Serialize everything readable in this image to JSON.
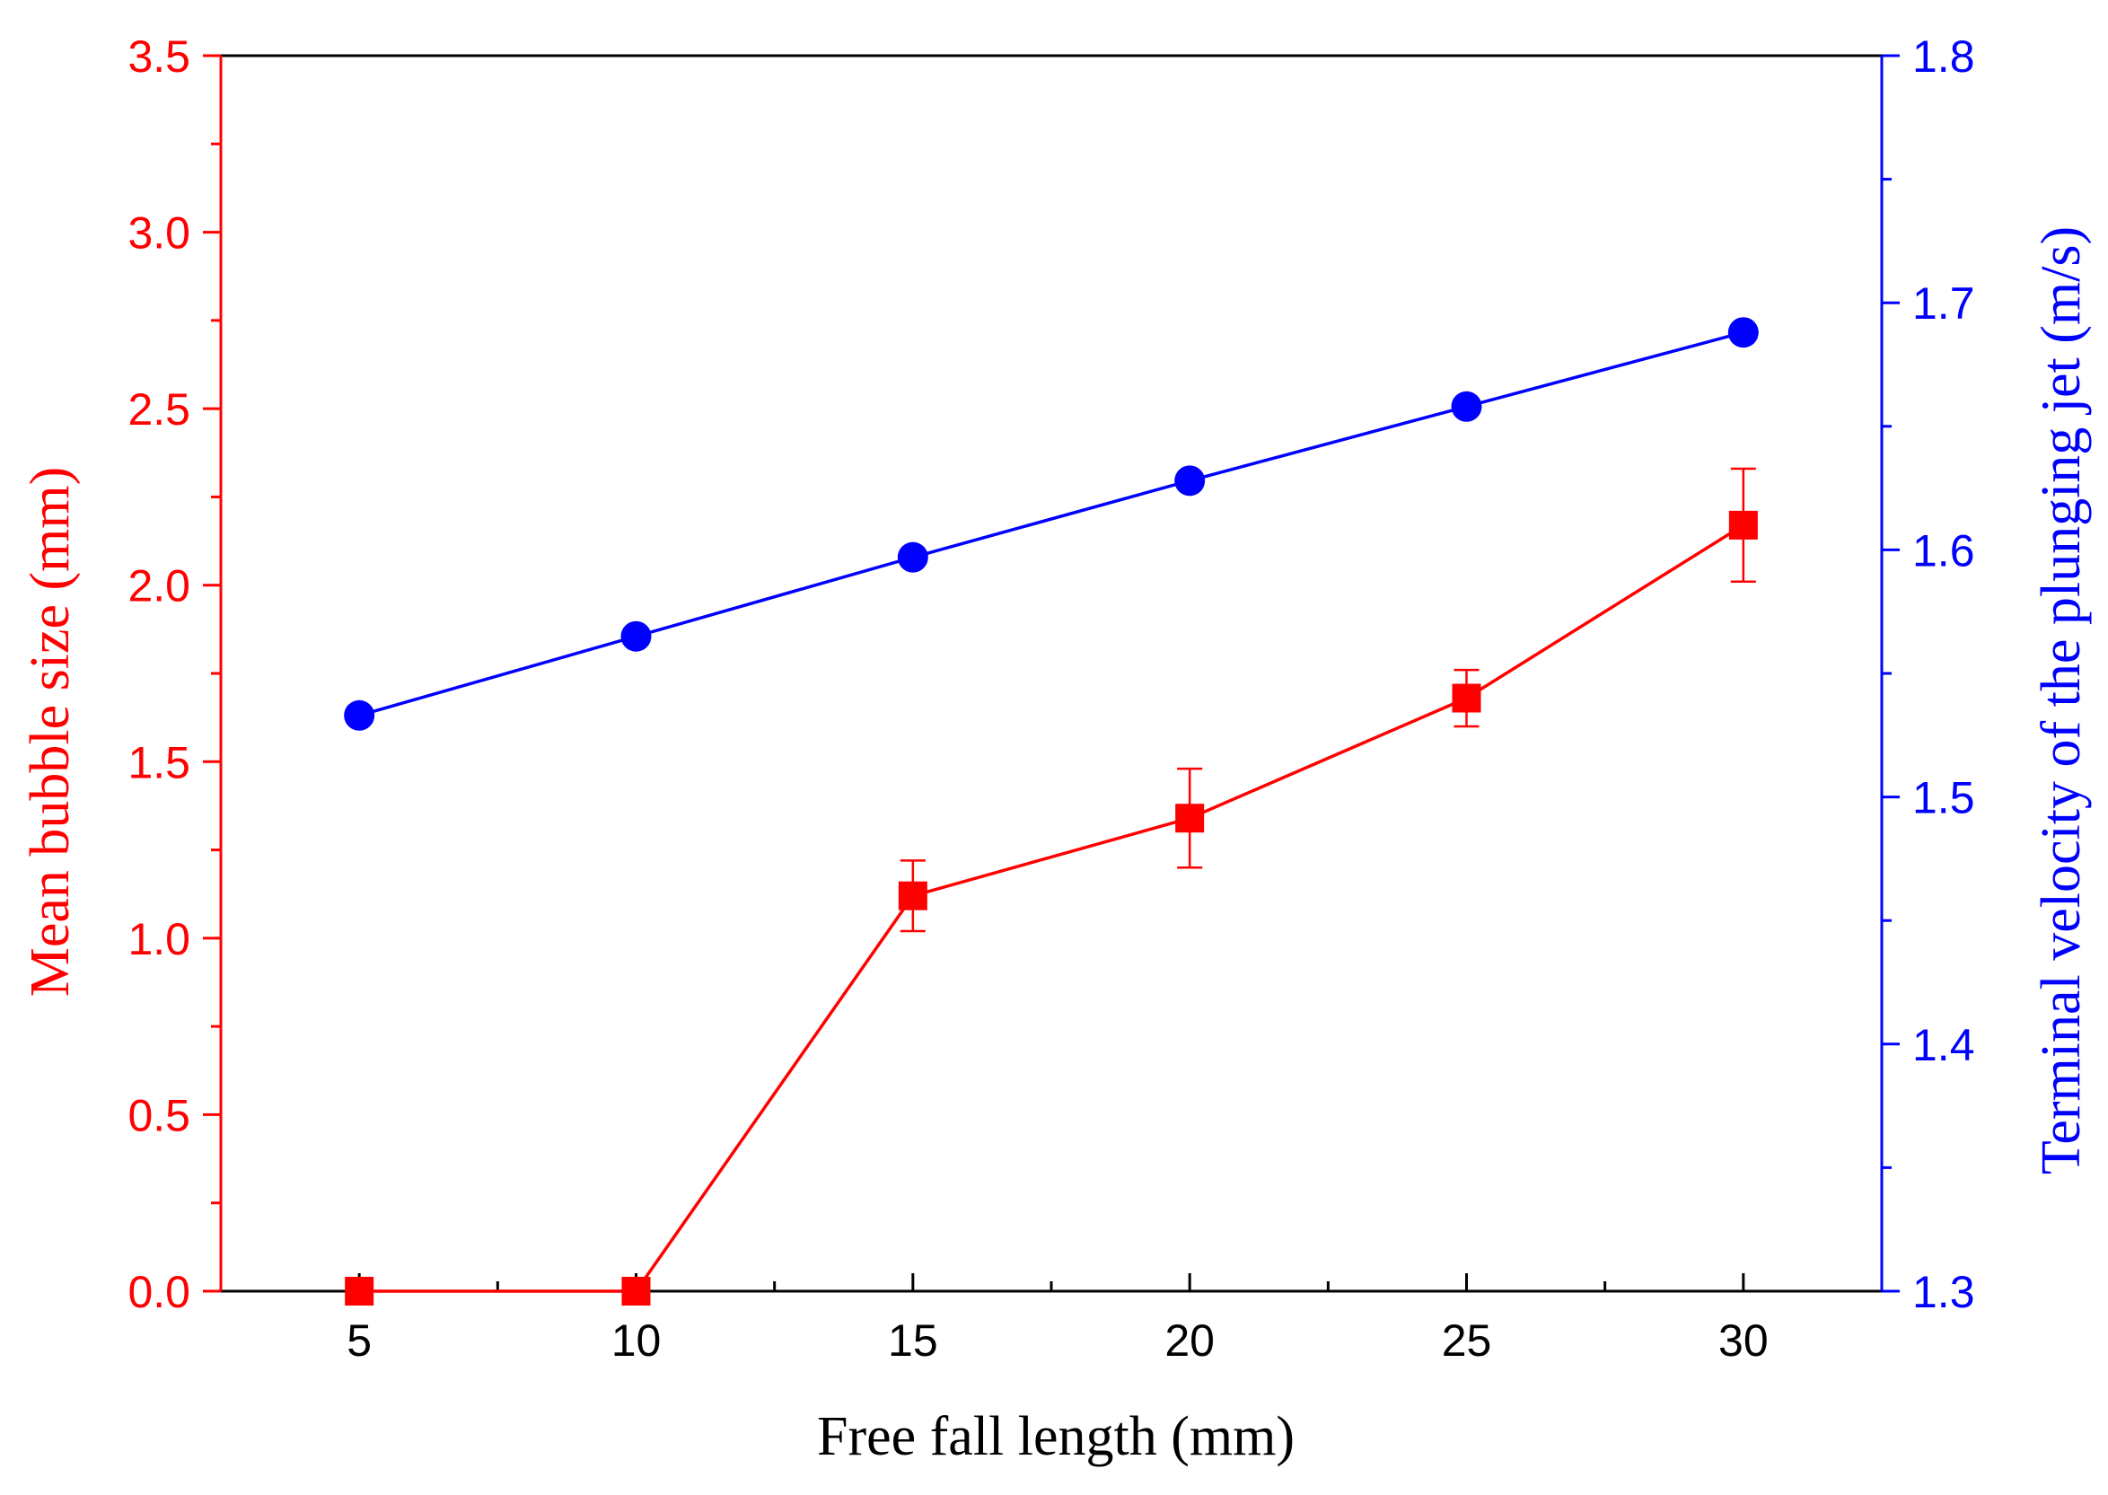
{
  "chart_data": {
    "type": "line",
    "title": "",
    "xlabel": "Free fall length (mm)",
    "ylabel_left": "Mean bubble size (mm)",
    "ylabel_right": "Terminal velocity of the plunging jet (m/s)",
    "x": [
      5,
      10,
      15,
      20,
      25,
      30
    ],
    "xlim": [
      2.5,
      32.5
    ],
    "xticks": [
      5,
      10,
      15,
      20,
      25,
      30
    ],
    "xtick_labels": [
      "5",
      "10",
      "15",
      "20",
      "25",
      "30"
    ],
    "ylim_left": [
      0,
      3.5
    ],
    "yticks_left": [
      0,
      0.5,
      1,
      1.5,
      2,
      2.5,
      3,
      3.5
    ],
    "ytick_labels_left": [
      "0.0",
      "0.5",
      "1.0",
      "1.5",
      "2.0",
      "2.5",
      "3.0",
      "3.5"
    ],
    "ylim_right": [
      1.3,
      1.8
    ],
    "yticks_right": [
      1.3,
      1.4,
      1.5,
      1.6,
      1.7,
      1.8
    ],
    "ytick_labels_right": [
      "1.3",
      "1.4",
      "1.5",
      "1.6",
      "1.7",
      "1.8"
    ],
    "grid": false,
    "legend": "none",
    "series": [
      {
        "name": "Mean bubble size",
        "axis": "left",
        "color": "#ff0000",
        "marker": "square",
        "values": [
          0,
          0,
          1.12,
          1.34,
          1.68,
          2.17
        ],
        "errors": [
          0,
          0,
          0.1,
          0.14,
          0.08,
          0.16
        ]
      },
      {
        "name": "Terminal velocity",
        "axis": "right",
        "color": "#0000ff",
        "marker": "circle",
        "values": [
          1.533,
          1.565,
          1.597,
          1.628,
          1.658,
          1.688
        ]
      }
    ],
    "colors": {
      "left_axis": "#ff0000",
      "right_axis": "#0000ff",
      "frame": "#000000"
    }
  }
}
